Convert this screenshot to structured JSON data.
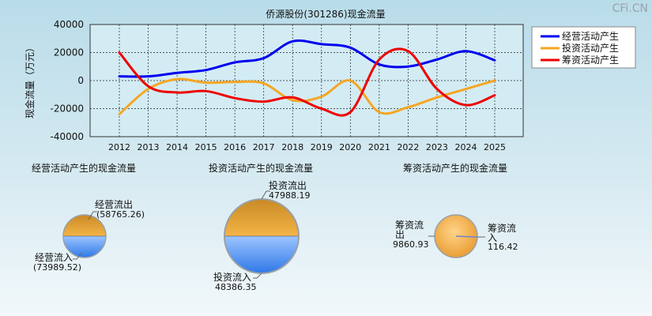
{
  "watermark": "CFi.CN",
  "chart_data": [
    {
      "type": "line",
      "title": "侨源股份(301286)现金流量",
      "xlabel": "",
      "ylabel": "现金流量（万元）",
      "x": [
        "2012",
        "2013",
        "2014",
        "2015",
        "2016",
        "2017",
        "2018",
        "2019",
        "2020",
        "2021",
        "2022",
        "2023",
        "2024",
        "2025"
      ],
      "ylim": [
        -40000,
        40000
      ],
      "yticks": [
        40000,
        20000,
        0,
        -20000,
        -40000
      ],
      "grid": true,
      "legend_position": "top-right",
      "series": [
        {
          "name": "经营活动产生",
          "color": "#0000ee",
          "values": [
            3000,
            3000,
            5500,
            7500,
            13000,
            16000,
            28000,
            26000,
            23500,
            11500,
            10000,
            15000,
            21000,
            14500
          ]
        },
        {
          "name": "投资活动产生",
          "color": "#f5a623",
          "values": [
            -24000,
            -6000,
            1000,
            -1500,
            -1000,
            -2000,
            -14000,
            -11500,
            0,
            -22500,
            -19000,
            -12000,
            -6000,
            0
          ]
        },
        {
          "name": "筹资活动产生",
          "color": "#ee0000",
          "values": [
            20000,
            -4000,
            -8500,
            -7500,
            -12500,
            -15000,
            -12000,
            -20000,
            -22500,
            15000,
            21000,
            -6000,
            -17500,
            -10500
          ]
        }
      ]
    },
    {
      "type": "pie",
      "title": "经营活动产生的现金流量",
      "slices": [
        {
          "label": "经营流出",
          "value_text": "(58765.26)",
          "value": 58765.26
        },
        {
          "label": "经营流入",
          "value_text": "(73989.52)",
          "value": 73989.52
        }
      ]
    },
    {
      "type": "pie",
      "title": "投资活动产生的现金流量",
      "slices": [
        {
          "label": "投资流出",
          "value_text": "47988.19",
          "value": 47988.19
        },
        {
          "label": "投资流入",
          "value_text": "48386.35",
          "value": 48386.35
        }
      ]
    },
    {
      "type": "pie",
      "title": "筹资活动产生的现金流量",
      "slices": [
        {
          "label": "筹资流出",
          "value_text": "9860.93",
          "value": 9860.93
        },
        {
          "label": "筹资流入",
          "value_text": "116.42",
          "value": 116.42
        }
      ]
    }
  ]
}
